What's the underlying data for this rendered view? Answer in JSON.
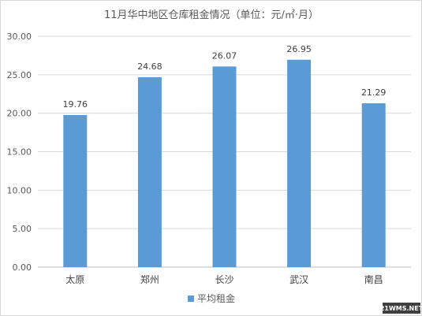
{
  "chart_data": {
    "type": "bar",
    "title": "11月华中地区仓库租金情况（单位：元/㎡·月）",
    "categories": [
      "太原",
      "郑州",
      "长沙",
      "武汉",
      "南昌"
    ],
    "series": [
      {
        "name": "平均租金",
        "values": [
          19.76,
          24.68,
          26.07,
          26.95,
          21.29
        ],
        "color": "#5b9bd5"
      }
    ],
    "data_labels": [
      "19.76",
      "24.68",
      "26.07",
      "26.95",
      "21.29"
    ],
    "ylim": [
      0,
      30
    ],
    "yticks": [
      0,
      5,
      10,
      15,
      20,
      25,
      30
    ],
    "ytick_labels": [
      "0.00",
      "5.00",
      "10.00",
      "15.00",
      "20.00",
      "25.00",
      "30.00"
    ],
    "grid": true,
    "legend_position": "bottom"
  },
  "watermark": "21WMS.NET"
}
